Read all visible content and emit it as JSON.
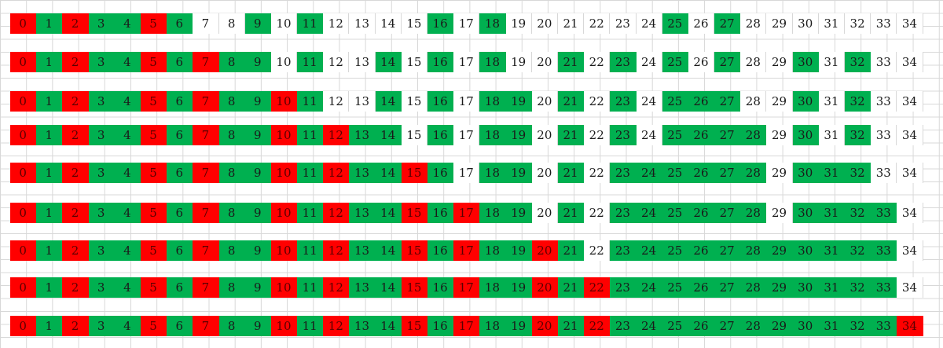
{
  "spreadsheet": {
    "colors": {
      "green": "#00b050",
      "red": "#ff0000",
      "white": "#ffffff"
    },
    "rows": [
      [
        "R",
        "G",
        "R",
        "G",
        "G",
        "R",
        "G",
        "W",
        "W",
        "G",
        "W",
        "G",
        "W",
        "W",
        "W",
        "W",
        "G",
        "W",
        "G",
        "W",
        "W",
        "W",
        "W",
        "W",
        "W",
        "G",
        "W",
        "G",
        "W",
        "W",
        "W",
        "W",
        "W",
        "W",
        "W"
      ],
      [
        "R",
        "G",
        "R",
        "G",
        "G",
        "R",
        "G",
        "R",
        "G",
        "G",
        "W",
        "G",
        "W",
        "W",
        "G",
        "W",
        "G",
        "W",
        "G",
        "W",
        "W",
        "G",
        "W",
        "G",
        "W",
        "G",
        "W",
        "G",
        "W",
        "W",
        "G",
        "W",
        "G",
        "W",
        "W"
      ],
      [
        "R",
        "G",
        "R",
        "G",
        "G",
        "R",
        "G",
        "R",
        "G",
        "G",
        "R",
        "G",
        "W",
        "W",
        "G",
        "W",
        "G",
        "W",
        "G",
        "G",
        "W",
        "G",
        "W",
        "G",
        "W",
        "G",
        "G",
        "G",
        "W",
        "W",
        "G",
        "W",
        "G",
        "W",
        "W"
      ],
      [
        "R",
        "G",
        "R",
        "G",
        "G",
        "R",
        "G",
        "R",
        "G",
        "G",
        "R",
        "G",
        "R",
        "G",
        "G",
        "W",
        "G",
        "W",
        "G",
        "G",
        "W",
        "G",
        "W",
        "G",
        "W",
        "G",
        "G",
        "G",
        "G",
        "W",
        "G",
        "W",
        "G",
        "W",
        "W"
      ],
      [
        "R",
        "G",
        "R",
        "G",
        "G",
        "R",
        "G",
        "R",
        "G",
        "G",
        "R",
        "G",
        "R",
        "G",
        "G",
        "R",
        "G",
        "W",
        "G",
        "G",
        "W",
        "G",
        "W",
        "G",
        "G",
        "G",
        "G",
        "G",
        "G",
        "W",
        "G",
        "G",
        "G",
        "W",
        "W"
      ],
      [
        "R",
        "G",
        "R",
        "G",
        "G",
        "R",
        "G",
        "R",
        "G",
        "G",
        "R",
        "G",
        "R",
        "G",
        "G",
        "R",
        "G",
        "R",
        "G",
        "G",
        "W",
        "G",
        "W",
        "G",
        "G",
        "G",
        "G",
        "G",
        "G",
        "W",
        "G",
        "G",
        "G",
        "G",
        "W"
      ],
      [
        "R",
        "G",
        "R",
        "G",
        "G",
        "R",
        "G",
        "R",
        "G",
        "G",
        "R",
        "G",
        "R",
        "G",
        "G",
        "R",
        "G",
        "R",
        "G",
        "G",
        "R",
        "G",
        "W",
        "G",
        "G",
        "G",
        "G",
        "G",
        "G",
        "G",
        "G",
        "G",
        "G",
        "G",
        "W"
      ],
      [
        "R",
        "G",
        "R",
        "G",
        "G",
        "R",
        "G",
        "R",
        "G",
        "G",
        "R",
        "G",
        "R",
        "G",
        "G",
        "R",
        "G",
        "R",
        "G",
        "G",
        "R",
        "G",
        "R",
        "G",
        "G",
        "G",
        "G",
        "G",
        "G",
        "G",
        "G",
        "G",
        "G",
        "G",
        "W"
      ],
      [
        "R",
        "G",
        "R",
        "G",
        "G",
        "R",
        "G",
        "R",
        "G",
        "G",
        "R",
        "G",
        "R",
        "G",
        "G",
        "R",
        "G",
        "R",
        "G",
        "G",
        "R",
        "G",
        "R",
        "G",
        "G",
        "G",
        "G",
        "G",
        "G",
        "G",
        "G",
        "G",
        "G",
        "G",
        "R"
      ]
    ],
    "numbers": [
      "0",
      "1",
      "2",
      "3",
      "4",
      "5",
      "6",
      "7",
      "8",
      "9",
      "10",
      "11",
      "12",
      "13",
      "14",
      "15",
      "16",
      "17",
      "18",
      "19",
      "20",
      "21",
      "22",
      "23",
      "24",
      "25",
      "26",
      "27",
      "28",
      "29",
      "30",
      "31",
      "32",
      "33",
      "34"
    ]
  }
}
